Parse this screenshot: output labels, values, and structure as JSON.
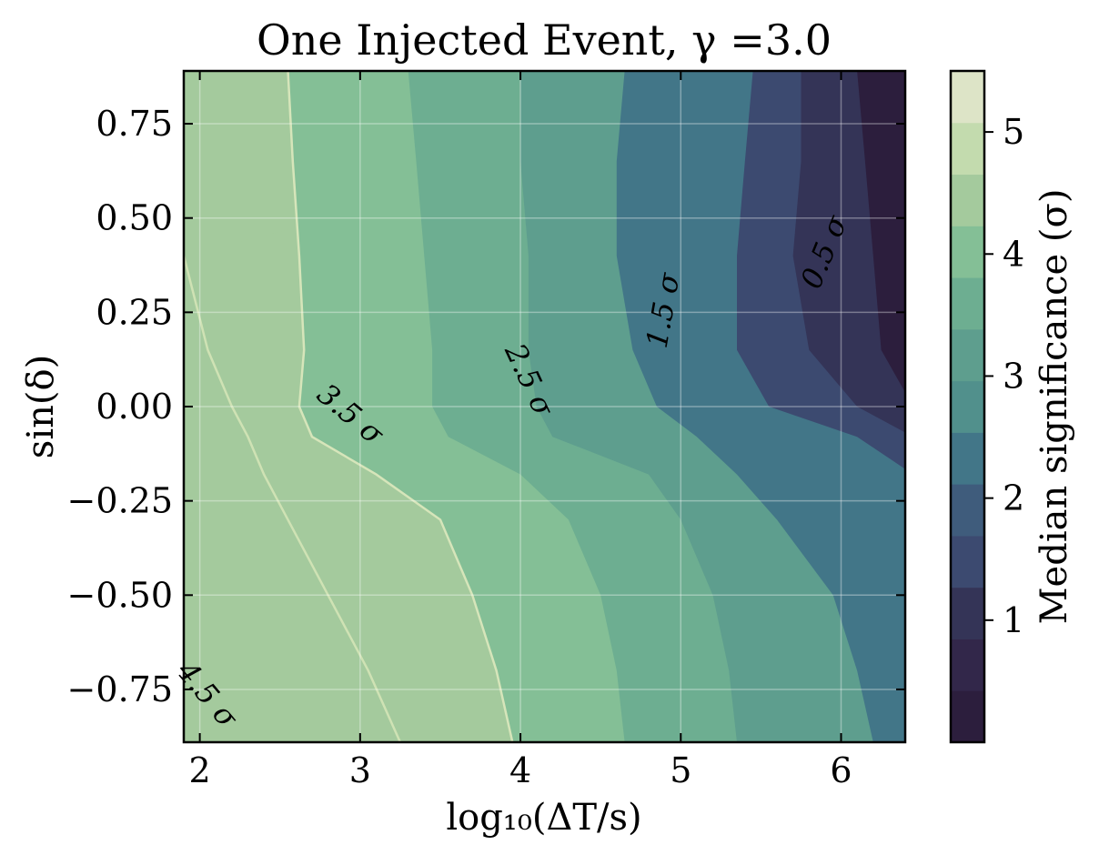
{
  "chart_data": {
    "type": "contourf",
    "title": "One Injected Event, γ =3.0",
    "xlabel": "log₁₀(ΔT/s)",
    "ylabel": "sin(δ)",
    "xlim": [
      1.9,
      6.4
    ],
    "ylim": [
      -0.89,
      0.89
    ],
    "x_ticks": [
      {
        "value": 2,
        "label": "2"
      },
      {
        "value": 3,
        "label": "3"
      },
      {
        "value": 4,
        "label": "4"
      },
      {
        "value": 5,
        "label": "5"
      },
      {
        "value": 6,
        "label": "6"
      }
    ],
    "y_ticks": [
      {
        "value": 0.75,
        "label": "0.75"
      },
      {
        "value": 0.5,
        "label": "0.50"
      },
      {
        "value": 0.25,
        "label": "0.25"
      },
      {
        "value": 0.0,
        "label": "0.00"
      },
      {
        "value": -0.25,
        "label": "−0.25"
      },
      {
        "value": -0.5,
        "label": "−0.50"
      },
      {
        "value": -0.75,
        "label": "−0.75"
      }
    ],
    "grid": true,
    "colorbar": {
      "label": "Median significance (σ)",
      "range": [
        0,
        5.5
      ],
      "ticks": [
        {
          "value": 1,
          "label": "1"
        },
        {
          "value": 2,
          "label": "2"
        },
        {
          "value": 3,
          "label": "3"
        },
        {
          "value": 4,
          "label": "4"
        },
        {
          "value": 5,
          "label": "5"
        }
      ],
      "level_colors": [
        "#2c1e3d",
        "#32274a",
        "#343457",
        "#3c4a70",
        "#3f5c7c",
        "#427688",
        "#51908c",
        "#5e9e8e",
        "#6dae91",
        "#84bf96",
        "#a4ca9d",
        "#c3dbae",
        "#dde4c7"
      ]
    },
    "levels": [
      0,
      0.5,
      1.0,
      1.5,
      2.0,
      2.5,
      3.0,
      3.5,
      4.0,
      4.5,
      5.0,
      5.5
    ],
    "y_grid": [
      -0.89,
      -0.7,
      -0.5,
      -0.3,
      -0.18,
      -0.08,
      0.0,
      0.15,
      0.4,
      0.65,
      0.89
    ],
    "band_colors": [
      "#2c1e3d",
      "#343457",
      "#3c4a70",
      "#427688",
      "#5e9e8e",
      "#6dae91",
      "#84bf96",
      "#a4ca9d"
    ],
    "contours": [
      {
        "level": 4.0,
        "x": [
          3.25,
          3.05,
          2.8,
          2.55,
          2.4,
          2.3,
          2.2,
          2.05,
          1.9
        ]
      },
      {
        "level": 3.5,
        "x": [
          3.95,
          3.85,
          3.7,
          3.5,
          3.1,
          2.7,
          2.62,
          2.65,
          2.62,
          2.58,
          2.55
        ]
      },
      {
        "level": 3.0,
        "x": [
          4.65,
          4.6,
          4.5,
          4.3,
          4.0,
          3.55,
          3.45,
          3.45,
          3.4,
          3.35,
          3.3
        ]
      },
      {
        "level": 2.5,
        "x": [
          5.35,
          5.3,
          5.2,
          5.0,
          4.8,
          4.2,
          4.1,
          4.05,
          4.05,
          4.0,
          4.0
        ]
      },
      {
        "level": 2.0,
        "x": [
          6.2,
          6.1,
          5.95,
          5.6,
          5.35,
          5.1,
          4.85,
          4.7,
          4.6,
          4.6,
          4.65
        ]
      },
      {
        "level": 1.5,
        "x": [
          6.45,
          6.45,
          6.45,
          6.45,
          6.45,
          6.1,
          5.55,
          5.35,
          5.35,
          5.4,
          5.45
        ]
      },
      {
        "level": 1.0,
        "x": [
          6.45,
          6.45,
          6.45,
          6.45,
          6.45,
          6.45,
          6.1,
          5.8,
          5.7,
          5.75,
          5.75
        ]
      },
      {
        "level": 0.5,
        "x": [
          6.45,
          6.45,
          6.45,
          6.45,
          6.45,
          6.45,
          6.45,
          6.25,
          6.2,
          6.15,
          6.1
        ]
      }
    ],
    "line_contours": [
      {
        "level": 4.5,
        "color": "#cfe2b4",
        "labelled": true
      },
      {
        "level": 3.5,
        "color": "#d6e5ba",
        "labelled": true
      },
      {
        "level": 2.5,
        "color": "#5e9e8e",
        "labelled": true
      },
      {
        "level": 1.5,
        "color": "#3c4a70",
        "labelled": true
      },
      {
        "level": 0.5,
        "color": "#32274a",
        "labelled": true
      }
    ],
    "contour_labels": [
      {
        "text": "0.5 σ",
        "x": 5.95,
        "y": 0.4,
        "angle": -68
      },
      {
        "text": "1.5 σ",
        "x": 4.95,
        "y": 0.25,
        "angle": -80
      },
      {
        "text": "2.5 σ",
        "x": 4.0,
        "y": 0.06,
        "angle": 65
      },
      {
        "text": "3.5 σ",
        "x": 2.9,
        "y": -0.04,
        "angle": 40
      },
      {
        "text": "4.5 σ",
        "x": 2.0,
        "y": -0.78,
        "angle": 50
      }
    ]
  }
}
